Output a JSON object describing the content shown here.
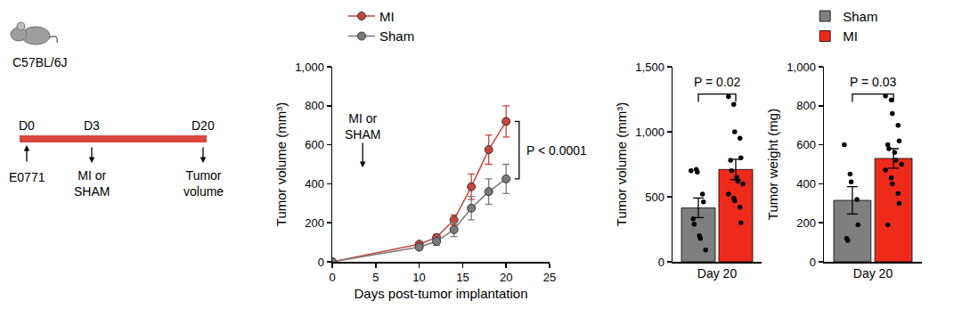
{
  "schematic": {
    "strain": "C57BL/6J",
    "timeline": [
      {
        "label": "D0",
        "event": "E0771"
      },
      {
        "label": "D3",
        "event": "MI or\nSHAM"
      },
      {
        "label": "D20",
        "event": "Tumor\nvolume"
      }
    ]
  },
  "chart_data": [
    {
      "type": "line",
      "x": [
        0,
        10,
        12,
        14,
        16,
        18,
        20
      ],
      "series": [
        {
          "name": "MI",
          "color": "#c9453a",
          "marker": "circle",
          "values": [
            0,
            90,
            125,
            215,
            385,
            575,
            720
          ],
          "error": [
            0,
            12,
            15,
            25,
            65,
            75,
            80
          ]
        },
        {
          "name": "Sham",
          "color": "#7a7a7a",
          "marker": "circle",
          "values": [
            0,
            75,
            105,
            165,
            275,
            360,
            425
          ],
          "error": [
            0,
            10,
            20,
            35,
            60,
            65,
            75
          ]
        }
      ],
      "xlabel": "Days post-tumor implantation",
      "ylabel": "Tumor volume (mm³)",
      "xlim": [
        0,
        25
      ],
      "xticks": [
        0,
        5,
        10,
        15,
        20,
        25
      ],
      "ylim": [
        0,
        1000
      ],
      "yticks": [
        0,
        200,
        400,
        600,
        800,
        {
          "value": 1000,
          "label": "1,000"
        }
      ],
      "annotations": [
        {
          "text": "MI or\nSHAM",
          "x": 3.5
        }
      ],
      "p_value": "P < 0.0001",
      "legend": "top left"
    },
    {
      "type": "bar",
      "categories": [
        "Day 20"
      ],
      "series": [
        {
          "name": "Sham",
          "color": "#7f7f7f",
          "values": [
            415
          ],
          "error": [
            75
          ],
          "points": [
            [
              700,
              710,
              690,
              520,
              460,
              330,
              290,
              200,
              180,
              90
            ]
          ]
        },
        {
          "name": "MI",
          "color": "#ee2a1b",
          "values": [
            710
          ],
          "error": [
            78
          ],
          "points": [
            [
              1270,
              1210,
              1000,
              950,
              800,
              780,
              700,
              650,
              620,
              600,
              520,
              490,
              470,
              420,
              300
            ]
          ]
        }
      ],
      "ylabel": "Tumor volume (mm³)",
      "ylim": [
        0,
        1500
      ],
      "yticks": [
        0,
        500,
        {
          "value": 1000,
          "label": "1,000"
        },
        {
          "value": 1500,
          "label": "1,500"
        }
      ],
      "p_value": "P = 0.02",
      "legend": "top"
    },
    {
      "type": "bar",
      "categories": [
        "Day 20"
      ],
      "series": [
        {
          "name": "Sham",
          "color": "#7f7f7f",
          "values": [
            315
          ],
          "error": [
            70
          ],
          "points": [
            [
              600,
              450,
              410,
              320,
              190,
              120,
              110
            ]
          ]
        },
        {
          "name": "MI",
          "color": "#ee2a1b",
          "values": [
            530
          ],
          "error": [
            50
          ],
          "points": [
            [
              850,
              830,
              760,
              700,
              620,
              600,
              580,
              560,
              520,
              500,
              470,
              430,
              400,
              350,
              300,
              190
            ]
          ]
        }
      ],
      "ylabel": "Tumor weight (mg)",
      "ylim": [
        0,
        1000
      ],
      "yticks": [
        0,
        200,
        400,
        600,
        800,
        {
          "value": 1000,
          "label": "1,000"
        }
      ],
      "p_value": "P = 0.03"
    }
  ]
}
